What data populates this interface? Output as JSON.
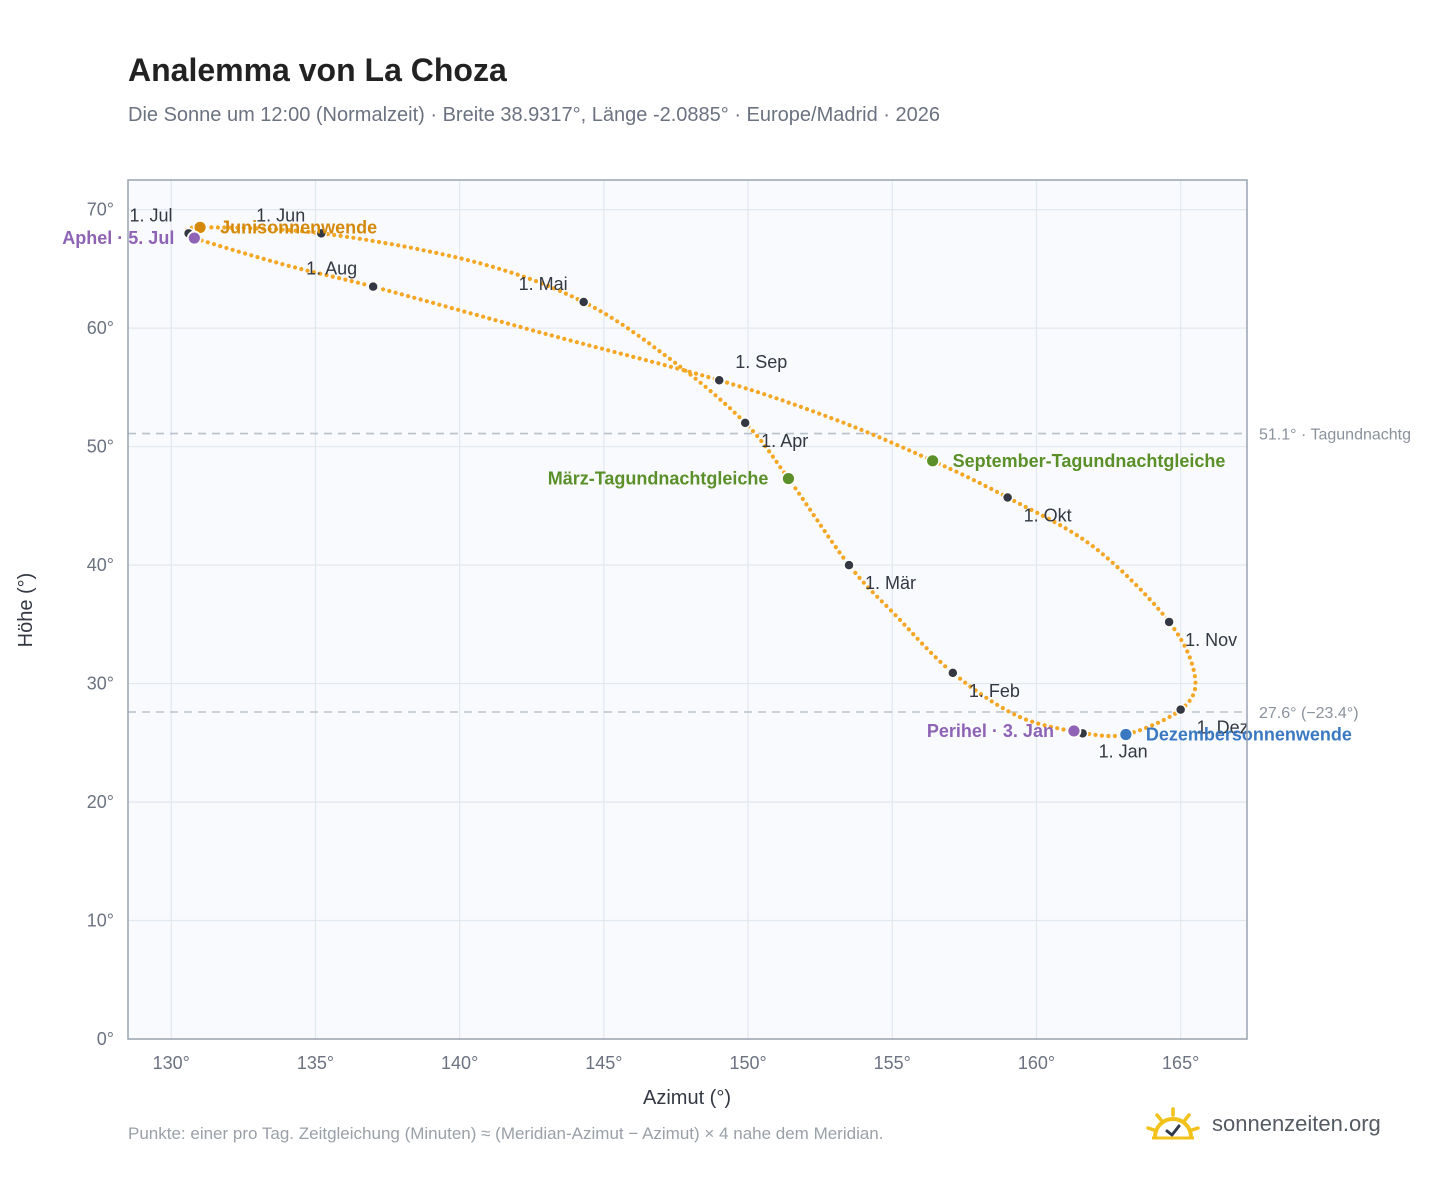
{
  "title": "Analemma von La Choza",
  "subtitle": "Die Sonne um 12:00 (Normalzeit) · Breite 38.9317°, Länge -2.0885° · Europe/Madrid · 2026",
  "footnote": "Punkte: einer pro Tag. Zeitgleichung (Minuten) ≈ (Meridian-Azimut − Azimut) × 4 nahe dem Meridian.",
  "brand": {
    "name": "sonnenzeiten.org",
    "icon": "sun-check-icon"
  },
  "colors": {
    "curve": "#f5a623",
    "month_marker": "#333842",
    "solstice_june": "#d4890a",
    "solstice_december": "#3a78c2",
    "equinox": "#5a8f29",
    "apsis": "#8e63b5",
    "reference_line": "#b9c2cc",
    "plot_bg": "#f8fafd",
    "grid": "#e2e8f0",
    "axis": "#99a3b0"
  },
  "chart_data": {
    "type": "scatter",
    "xlabel": "Azimut (°)",
    "ylabel": "Höhe (°)",
    "xlim": [
      128.5,
      167.3
    ],
    "ylim": [
      0,
      72.5
    ],
    "x_ticks": [
      130,
      135,
      140,
      145,
      150,
      155,
      160,
      165
    ],
    "y_ticks": [
      0,
      10,
      20,
      30,
      40,
      50,
      60,
      70
    ],
    "x_tick_labels": [
      "130°",
      "135°",
      "140°",
      "145°",
      "150°",
      "155°",
      "160°",
      "165°"
    ],
    "y_tick_labels": [
      "0°",
      "10°",
      "20°",
      "30°",
      "40°",
      "50°",
      "60°",
      "70°"
    ],
    "grid": true,
    "analemma_path": [
      {
        "x": 161.6,
        "y": 25.8
      },
      {
        "x": 159.4,
        "y": 27.2
      },
      {
        "x": 157.1,
        "y": 30.9
      },
      {
        "x": 155.1,
        "y": 35.8
      },
      {
        "x": 153.5,
        "y": 40.0
      },
      {
        "x": 151.4,
        "y": 47.3
      },
      {
        "x": 149.9,
        "y": 52.0
      },
      {
        "x": 147.4,
        "y": 57.2
      },
      {
        "x": 144.3,
        "y": 62.2
      },
      {
        "x": 140.5,
        "y": 65.6
      },
      {
        "x": 135.2,
        "y": 68.0
      },
      {
        "x": 131.0,
        "y": 68.5
      },
      {
        "x": 130.6,
        "y": 68.0
      },
      {
        "x": 130.8,
        "y": 67.6
      },
      {
        "x": 134.0,
        "y": 65.3
      },
      {
        "x": 137.0,
        "y": 63.5
      },
      {
        "x": 143.0,
        "y": 59.5
      },
      {
        "x": 149.0,
        "y": 55.6
      },
      {
        "x": 153.0,
        "y": 52.3
      },
      {
        "x": 156.4,
        "y": 48.8
      },
      {
        "x": 159.0,
        "y": 45.7
      },
      {
        "x": 162.0,
        "y": 41.5
      },
      {
        "x": 164.6,
        "y": 35.2
      },
      {
        "x": 165.5,
        "y": 30.5
      },
      {
        "x": 165.0,
        "y": 27.8
      },
      {
        "x": 163.1,
        "y": 25.7
      },
      {
        "x": 161.6,
        "y": 25.8
      }
    ],
    "month_markers": [
      {
        "label": "1. Jan",
        "x": 161.6,
        "y": 25.8,
        "anchor": "below"
      },
      {
        "label": "1. Feb",
        "x": 157.1,
        "y": 30.9,
        "anchor": "right"
      },
      {
        "label": "1. Mär",
        "x": 153.5,
        "y": 40.0,
        "anchor": "right"
      },
      {
        "label": "1. Apr",
        "x": 149.9,
        "y": 52.0,
        "anchor": "right"
      },
      {
        "label": "1. Mai",
        "x": 144.3,
        "y": 62.2,
        "anchor": "left-above"
      },
      {
        "label": "1. Jun",
        "x": 135.2,
        "y": 68.0,
        "anchor": "left-above"
      },
      {
        "label": "1. Jul",
        "x": 130.6,
        "y": 68.0,
        "anchor": "left-above"
      },
      {
        "label": "1. Aug",
        "x": 137.0,
        "y": 63.5,
        "anchor": "left-above"
      },
      {
        "label": "1. Sep",
        "x": 149.0,
        "y": 55.6,
        "anchor": "right-above"
      },
      {
        "label": "1. Okt",
        "x": 159.0,
        "y": 45.7,
        "anchor": "right"
      },
      {
        "label": "1. Nov",
        "x": 164.6,
        "y": 35.2,
        "anchor": "right"
      },
      {
        "label": "1. Dez",
        "x": 165.0,
        "y": 27.8,
        "anchor": "right"
      }
    ],
    "events": [
      {
        "label": "Junisonnenwende",
        "x": 131.0,
        "y": 68.5,
        "kind": "solstice_june",
        "side": "right"
      },
      {
        "label": "Dezembersonnenwende",
        "x": 163.1,
        "y": 25.7,
        "kind": "solstice_december",
        "side": "right"
      },
      {
        "label": "März-Tagundnachtgleiche",
        "x": 151.4,
        "y": 47.3,
        "kind": "equinox",
        "side": "left"
      },
      {
        "label": "September-Tagundnachtgleiche",
        "x": 156.4,
        "y": 48.8,
        "kind": "equinox",
        "side": "right"
      },
      {
        "label": "Aphel · 5. Jul",
        "x": 130.8,
        "y": 67.6,
        "kind": "apsis",
        "side": "left"
      },
      {
        "label": "Perihel · 3. Jan",
        "x": 161.3,
        "y": 26.0,
        "kind": "apsis",
        "side": "left"
      }
    ],
    "reference_lines": [
      {
        "y": 51.1,
        "label": "51.1° · Tagundnachtg"
      },
      {
        "y": 27.6,
        "label": "27.6° (−23.4°)"
      }
    ]
  }
}
